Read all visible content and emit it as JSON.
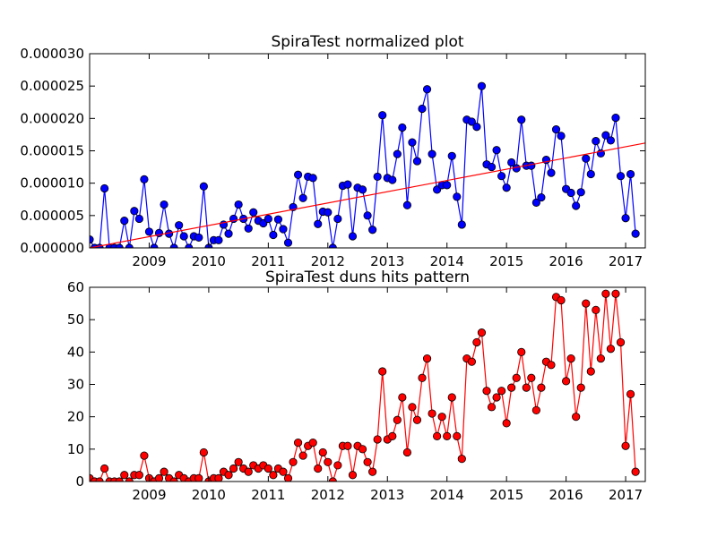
{
  "chart_data": [
    {
      "type": "line",
      "title": "SpiraTest normalized plot",
      "xlabel": "",
      "ylabel": "",
      "xlim": [
        2008.0,
        2017.33
      ],
      "ylim": [
        0,
        3e-05
      ],
      "x_ticks": [
        "2009",
        "2010",
        "2011",
        "2012",
        "2013",
        "2014",
        "2015",
        "2016",
        "2017"
      ],
      "y_ticks": [
        "0.000000",
        "0.000005",
        "0.000010",
        "0.000015",
        "0.000020",
        "0.000025",
        "0.000030"
      ],
      "grid": false,
      "series": [
        {
          "color": "#0000ff",
          "marker": "circle",
          "start": 2008.0,
          "step": 0.08333,
          "values": [
            1.3e-06,
            0.0,
            0.0,
            9.2e-06,
            0.0,
            0.0,
            0.0,
            4.2e-06,
            0.0,
            5.7e-06,
            4.5e-06,
            1.06e-05,
            2.5e-06,
            0.0,
            2.3e-06,
            6.7e-06,
            2.2e-06,
            0.0,
            3.5e-06,
            1.8e-06,
            0.0,
            1.8e-06,
            1.6e-06,
            9.5e-06,
            0.0,
            1.2e-06,
            1.2e-06,
            3.6e-06,
            2.2e-06,
            4.5e-06,
            6.7e-06,
            4.5e-06,
            3e-06,
            5.5e-06,
            4.2e-06,
            3.8e-06,
            4.5e-06,
            2e-06,
            4.4e-06,
            2.9e-06,
            8e-07,
            6.3e-06,
            1.13e-05,
            7.7e-06,
            1.1e-05,
            1.08e-05,
            3.7e-06,
            5.6e-06,
            5.5e-06,
            0.0,
            4.5e-06,
            9.6e-06,
            9.8e-06,
            1.8e-06,
            9.3e-06,
            9e-06,
            5e-06,
            2.8e-06,
            1.1e-05,
            2.05e-05,
            1.08e-05,
            1.05e-05,
            1.45e-05,
            1.86e-05,
            6.6e-06,
            1.63e-05,
            1.34e-05,
            2.15e-05,
            2.45e-05,
            1.45e-05,
            9e-06,
            9.7e-06,
            9.7e-06,
            1.42e-05,
            7.9e-06,
            3.6e-06,
            1.98e-05,
            1.95e-05,
            1.87e-05,
            2.5e-05,
            1.29e-05,
            1.25e-05,
            1.51e-05,
            1.11e-05,
            9.3e-06,
            1.32e-05,
            1.23e-05,
            1.98e-05,
            1.27e-05,
            1.27e-05,
            7e-06,
            7.8e-06,
            1.36e-05,
            1.16e-05,
            1.83e-05,
            1.73e-05,
            9.1e-06,
            8.5e-06,
            6.5e-06,
            8.6e-06,
            1.38e-05,
            1.14e-05,
            1.65e-05,
            1.46e-05,
            1.74e-05,
            1.66e-05,
            2.01e-05,
            1.11e-05,
            4.6e-06,
            1.14e-05,
            2.2e-06
          ]
        },
        {
          "color": "#ff0000",
          "marker": "none",
          "x": [
            2008.0,
            2017.33
          ],
          "values": [
            0.0,
            1.62e-05
          ]
        }
      ]
    },
    {
      "type": "line",
      "title": "SpiraTest duns hits pattern",
      "xlabel": "",
      "ylabel": "",
      "xlim": [
        2008.0,
        2017.33
      ],
      "ylim": [
        0,
        60
      ],
      "x_ticks": [
        "2009",
        "2010",
        "2011",
        "2012",
        "2013",
        "2014",
        "2015",
        "2016",
        "2017"
      ],
      "y_ticks": [
        "0",
        "10",
        "20",
        "30",
        "40",
        "50",
        "60"
      ],
      "grid": false,
      "series": [
        {
          "color": "#ff0000",
          "marker": "circle",
          "marker_fill": "#ff0000",
          "start": 2008.0,
          "step": 0.08333,
          "values": [
            1,
            0,
            0,
            4,
            0,
            0,
            0,
            2,
            0,
            2,
            2,
            8,
            1,
            0,
            1,
            3,
            1,
            0,
            2,
            1,
            0,
            1,
            1,
            9,
            0,
            1,
            1,
            3,
            2,
            4,
            6,
            4,
            3,
            5,
            4,
            5,
            4,
            2,
            4,
            3,
            1,
            6,
            12,
            8,
            11,
            12,
            4,
            9,
            6,
            0,
            5,
            11,
            11,
            2,
            11,
            10,
            6,
            3,
            13,
            34,
            13,
            14,
            19,
            26,
            9,
            23,
            19,
            32,
            38,
            21,
            14,
            20,
            14,
            26,
            14,
            7,
            38,
            37,
            43,
            46,
            28,
            23,
            26,
            28,
            18,
            29,
            32,
            40,
            29,
            32,
            22,
            29,
            37,
            36,
            57,
            56,
            31,
            38,
            20,
            29,
            55,
            34,
            53,
            38,
            58,
            41,
            58,
            43,
            11,
            27,
            3
          ]
        }
      ]
    }
  ]
}
